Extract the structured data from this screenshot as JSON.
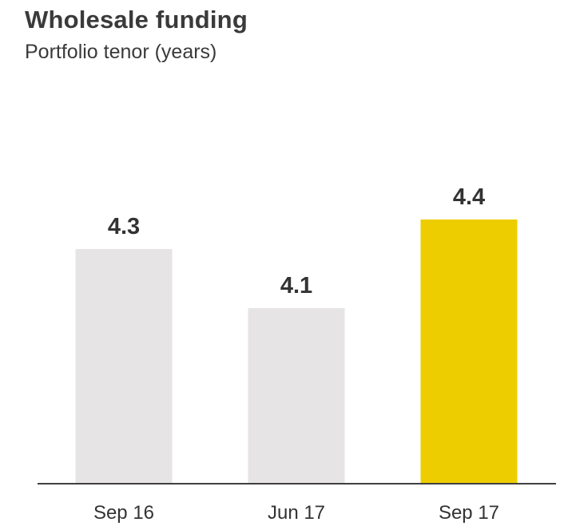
{
  "header": {
    "title": "Wholesale funding",
    "subtitle": "Portfolio tenor (years)"
  },
  "chart_data": {
    "type": "bar",
    "title": "Wholesale funding",
    "subtitle": "Portfolio tenor (years)",
    "categories": [
      "Sep 16",
      "Jun 17",
      "Sep 17"
    ],
    "values": [
      4.3,
      4.1,
      4.4
    ],
    "value_labels": [
      "4.3",
      "4.1",
      "4.4"
    ],
    "colors": [
      "#e6e4e4",
      "#e6e4e4",
      "#eecd00"
    ],
    "xlabel": "",
    "ylabel": "",
    "grid": false,
    "legend": "none"
  }
}
